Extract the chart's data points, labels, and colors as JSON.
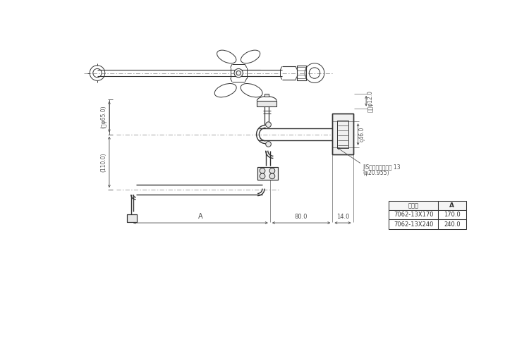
{
  "bg_color": "#ffffff",
  "line_color": "#333333",
  "table_rows": [
    [
      "7062-13X170",
      "170.0"
    ],
    [
      "7062-13X240",
      "240.0"
    ]
  ],
  "table_header_col1": "品　番",
  "table_header_col2": "A",
  "dim_upper_height": "(大φ65.0)",
  "dim_lower_height": "(110.0)",
  "dim_a": "A",
  "dim_80": "80.0",
  "dim_14": "14.0",
  "dim_phi12": "内径φ12.0",
  "dim_phi46": "ς46.0",
  "jis_line1": "JIS給水核取付ねじ 13",
  "jis_line2": "(φ20.955)"
}
